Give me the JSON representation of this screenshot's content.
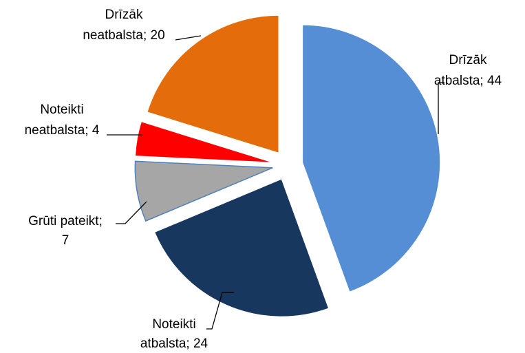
{
  "chart_data": {
    "type": "pie",
    "values": [
      44,
      24,
      7,
      4,
      20
    ],
    "value_labels": [
      [
        "Drīzāk",
        "atbalsta; 44"
      ],
      [
        "Noteikti",
        "atbalsta; 24"
      ],
      [
        "Grūti pateikt;",
        "7"
      ],
      [
        "Noteikti",
        "neatbalsta; 4"
      ],
      [
        "Drīzāk",
        "neatbalsta; 20"
      ]
    ],
    "colors": [
      "#558ed5",
      "#17375e",
      "#a6a6a6",
      "#ff0000",
      "#e46c0a"
    ],
    "exploded": true
  }
}
